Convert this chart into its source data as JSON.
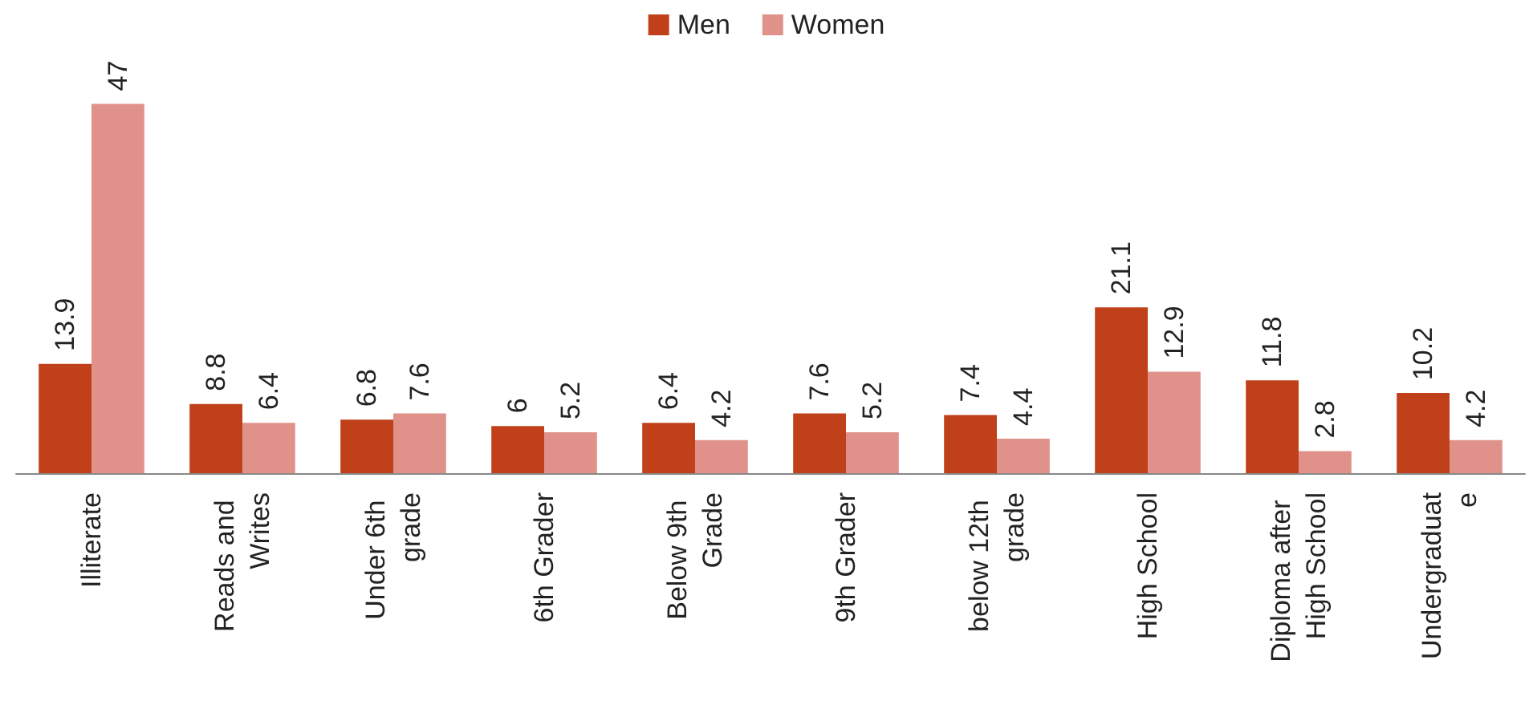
{
  "chart_data": {
    "type": "bar",
    "categories": [
      "Illiterate",
      "Reads and Writes",
      "Under 6th grade",
      "6th Grader",
      "Below 9th Grade",
      "9th Grader",
      "below 12th grade",
      "High School",
      "Diploma after High School",
      "Undergraduate"
    ],
    "series": [
      {
        "name": "Men",
        "color": "#c0401a",
        "values": [
          13.9,
          8.8,
          6.8,
          6,
          6.4,
          7.6,
          7.4,
          21.1,
          11.8,
          10.2
        ]
      },
      {
        "name": "Women",
        "color": "#e0918a",
        "values": [
          47,
          6.4,
          7.6,
          5.2,
          4.2,
          5.2,
          4.4,
          12.9,
          2.8,
          4.2
        ]
      }
    ],
    "data_labels": true,
    "legend": "top",
    "tick_labels": "x"
  }
}
